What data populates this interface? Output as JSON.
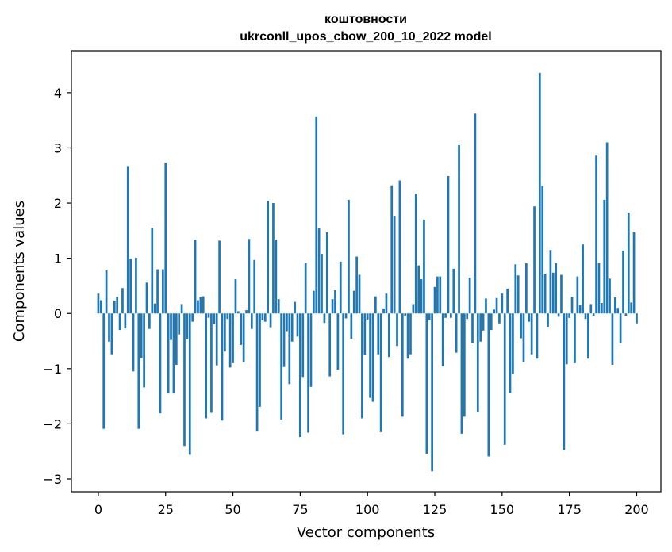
{
  "chart_data": {
    "type": "bar",
    "title": "коштовности",
    "subtitle": "ukrconll_upos_cbow_200_10_2022 model",
    "xlabel": "Vector components",
    "ylabel": "Components values",
    "xlim": [
      -10,
      209
    ],
    "ylim": [
      -3.23,
      4.76
    ],
    "xticks": [
      0,
      25,
      50,
      75,
      100,
      125,
      150,
      175,
      200
    ],
    "yticks": [
      -3,
      -2,
      -1,
      0,
      1,
      2,
      3,
      4
    ],
    "ytick_labels": [
      "−3",
      "−2",
      "−1",
      "0",
      "1",
      "2",
      "3",
      "4"
    ],
    "grid": false,
    "bar_color": "#1f77b4",
    "values": [
      0.36,
      0.24,
      -2.09,
      0.78,
      -0.51,
      -0.74,
      0.23,
      0.3,
      -0.3,
      0.46,
      -0.27,
      2.67,
      0.99,
      -1.05,
      1.01,
      -2.09,
      -0.81,
      -1.34,
      0.56,
      -0.28,
      1.55,
      0.18,
      0.8,
      -1.81,
      0.8,
      2.73,
      -1.45,
      -0.48,
      -1.45,
      -0.93,
      -0.38,
      0.17,
      -2.4,
      -0.47,
      -2.56,
      -0.15,
      1.34,
      0.24,
      0.3,
      0.31,
      -1.9,
      -0.08,
      -1.8,
      -0.19,
      -0.94,
      1.32,
      -1.94,
      -0.69,
      -0.1,
      -0.98,
      -0.9,
      0.62,
      0.04,
      -0.57,
      -0.88,
      0.06,
      1.35,
      -0.28,
      0.97,
      -2.14,
      -1.69,
      -0.12,
      -0.15,
      2.04,
      -0.25,
      2.0,
      1.34,
      0.26,
      -1.92,
      -0.97,
      -0.32,
      -1.28,
      -0.51,
      0.21,
      -0.42,
      -2.24,
      -1.15,
      0.91,
      -2.16,
      -1.33,
      0.41,
      3.57,
      1.54,
      1.08,
      -0.17,
      1.47,
      -1.14,
      0.26,
      0.42,
      -1.02,
      0.94,
      -2.19,
      -0.09,
      2.06,
      -0.46,
      0.41,
      1.03,
      0.7,
      -1.9,
      -0.75,
      -0.11,
      -1.53,
      -1.6,
      0.31,
      -0.74,
      -2.15,
      0.09,
      0.36,
      -0.79,
      2.32,
      1.77,
      -0.59,
      2.41,
      -1.87,
      -0.04,
      -0.82,
      -0.74,
      0.17,
      2.17,
      0.87,
      0.62,
      1.7,
      -2.54,
      -0.12,
      -2.86,
      0.48,
      0.67,
      0.67,
      -0.96,
      -0.08,
      2.49,
      -0.08,
      0.81,
      -0.71,
      3.05,
      -2.18,
      -1.87,
      -0.1,
      0.65,
      -0.54,
      3.62,
      -1.79,
      -0.51,
      -0.31,
      0.27,
      -2.59,
      -0.3,
      0.07,
      0.28,
      -0.18,
      0.36,
      -2.38,
      0.45,
      -1.44,
      -1.1,
      0.89,
      0.69,
      -0.45,
      -0.88,
      0.91,
      -0.15,
      -0.74,
      1.94,
      -0.82,
      4.36,
      2.31,
      0.72,
      -0.24,
      1.15,
      0.74,
      0.91,
      -0.06,
      0.7,
      -2.47,
      -0.92,
      -0.08,
      0.3,
      -0.9,
      0.67,
      0.15,
      1.25,
      -0.1,
      -0.82,
      0.17,
      -0.04,
      2.86,
      0.91,
      0.19,
      2.06,
      3.1,
      0.63,
      -0.93,
      0.29,
      0.1,
      -0.54,
      1.14,
      -0.04,
      1.83,
      0.2,
      1.47,
      -0.18
    ]
  }
}
